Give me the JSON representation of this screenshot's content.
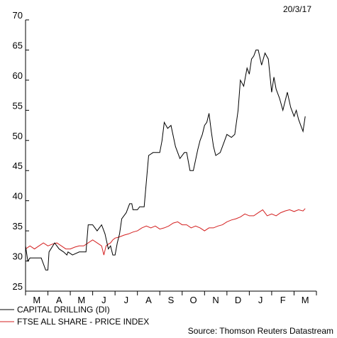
{
  "chart_data": {
    "type": "line",
    "date_label": "20/3/17",
    "source": "Source: Thomson Reuters Datastream",
    "ylim": [
      25,
      70
    ],
    "yticks": [
      25,
      30,
      35,
      40,
      45,
      50,
      55,
      60,
      65,
      70
    ],
    "x_tick_labels": [
      "M",
      "A",
      "M",
      "J",
      "J",
      "A",
      "S",
      "O",
      "N",
      "D",
      "J",
      "F",
      "M"
    ],
    "xlabel": "",
    "ylabel": "",
    "grid": false,
    "legend_position": "bottom-left",
    "series": [
      {
        "name": "CAPITAL DRILLING (DI)",
        "color": "#000000",
        "x": [
          0,
          0.1,
          0.2,
          0.35,
          0.5,
          0.7,
          0.9,
          1.0,
          1.05,
          1.3,
          1.5,
          1.7,
          1.85,
          1.9,
          2.1,
          2.4,
          2.7,
          2.8,
          3.0,
          3.2,
          3.4,
          3.5,
          3.55,
          3.7,
          3.8,
          3.9,
          4.0,
          4.1,
          4.2,
          4.3,
          4.5,
          4.65,
          4.75,
          4.8,
          4.9,
          5.0,
          5.1,
          5.2,
          5.3,
          5.5,
          5.7,
          5.8,
          5.9,
          6.0,
          6.1,
          6.2,
          6.35,
          6.5,
          6.7,
          6.9,
          7.1,
          7.2,
          7.35,
          7.5,
          7.7,
          7.8,
          7.9,
          8.0,
          8.1,
          8.2,
          8.3,
          8.4,
          8.5,
          8.7,
          8.9,
          9.0,
          9.2,
          9.35,
          9.5,
          9.6,
          9.75,
          9.9,
          10.0,
          10.1,
          10.2,
          10.3,
          10.4,
          10.55,
          10.7,
          10.85,
          11.0,
          11.1,
          11.2,
          11.35,
          11.5,
          11.7,
          11.85,
          12.0,
          12.1,
          12.2,
          12.3,
          12.4,
          12.5
        ],
        "values": [
          32.5,
          30.0,
          30.5,
          30.5,
          30.5,
          30.5,
          28.5,
          28.5,
          31.5,
          33.0,
          32.0,
          31.5,
          31.0,
          31.5,
          31.0,
          31.5,
          31.5,
          36.0,
          36.0,
          35.0,
          36.0,
          35.0,
          34.5,
          32.0,
          32.5,
          31.0,
          31.0,
          33.0,
          34.5,
          37.0,
          38.0,
          39.5,
          39.5,
          38.5,
          38.5,
          38.5,
          39.0,
          39.0,
          39.0,
          47.5,
          48.0,
          48.0,
          48.0,
          48.0,
          50.0,
          53.0,
          52.0,
          52.5,
          49.0,
          47.0,
          48.0,
          48.0,
          45.0,
          45.0,
          48.5,
          50.0,
          51.0,
          52.5,
          53.0,
          54.5,
          51.5,
          49.0,
          47.5,
          48.0,
          50.0,
          51.0,
          50.5,
          51.0,
          55.0,
          60.0,
          59.0,
          62.0,
          61.0,
          63.5,
          64.0,
          65.0,
          65.0,
          62.5,
          64.5,
          63.5,
          58.0,
          60.5,
          58.5,
          57.0,
          55.0,
          58.0,
          55.5,
          54.0,
          55.0,
          53.5,
          52.5,
          51.5,
          54.0
        ]
      },
      {
        "name": "FTSE ALL SHARE - PRICE INDEX",
        "color": "#d42020",
        "x": [
          0,
          0.2,
          0.4,
          0.6,
          0.8,
          1.0,
          1.2,
          1.4,
          1.6,
          1.8,
          2.0,
          2.2,
          2.4,
          2.6,
          2.8,
          3.0,
          3.2,
          3.4,
          3.5,
          3.6,
          3.7,
          3.8,
          3.9,
          4.0,
          4.2,
          4.4,
          4.6,
          4.8,
          5.0,
          5.2,
          5.4,
          5.6,
          5.8,
          6.0,
          6.2,
          6.4,
          6.6,
          6.8,
          7.0,
          7.2,
          7.4,
          7.6,
          7.8,
          8.0,
          8.2,
          8.4,
          8.6,
          8.8,
          9.0,
          9.2,
          9.4,
          9.6,
          9.8,
          10.0,
          10.2,
          10.4,
          10.6,
          10.8,
          11.0,
          11.2,
          11.4,
          11.6,
          11.8,
          12.0,
          12.2,
          12.4,
          12.5
        ],
        "values": [
          32.0,
          32.5,
          32.0,
          32.5,
          33.0,
          32.5,
          32.8,
          33.0,
          32.5,
          32.0,
          32.0,
          32.3,
          32.5,
          32.5,
          33.0,
          33.5,
          33.0,
          32.5,
          31.0,
          32.5,
          32.8,
          33.0,
          33.5,
          33.8,
          34.0,
          34.3,
          34.5,
          34.8,
          35.0,
          35.5,
          35.8,
          35.5,
          35.8,
          35.3,
          35.5,
          35.8,
          36.3,
          36.5,
          36.0,
          36.0,
          35.5,
          35.8,
          35.5,
          35.0,
          35.5,
          35.5,
          35.8,
          36.0,
          36.5,
          36.8,
          37.0,
          37.3,
          37.8,
          37.5,
          37.5,
          38.0,
          38.5,
          37.5,
          37.8,
          37.5,
          38.0,
          38.3,
          38.5,
          38.2,
          38.5,
          38.3,
          38.7
        ]
      }
    ]
  }
}
